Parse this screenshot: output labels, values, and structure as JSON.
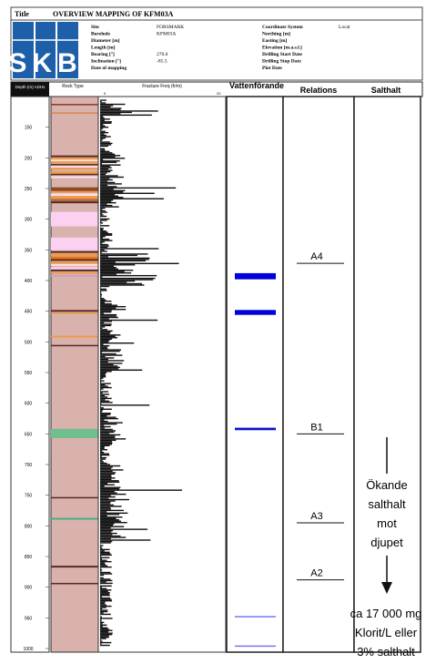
{
  "title_bar": {
    "label": "Title",
    "value": "OVERVIEW MAPPING OF KFM03A"
  },
  "logo": {
    "text": "SKB",
    "color": "#1d5fa8"
  },
  "header_fields": [
    {
      "label": "Site",
      "value": "FORSMARK"
    },
    {
      "label": "Borehole",
      "value": "KFM03A"
    },
    {
      "label": "Diameter [m]",
      "value": ""
    },
    {
      "label": "Length [m]",
      "value": ""
    },
    {
      "label": "Bearing [°]",
      "value": "270.0"
    },
    {
      "label": "Inclination [°]",
      "value": "-85.5"
    },
    {
      "label": "Date of mapping",
      "value": ""
    }
  ],
  "header_fields_right": [
    {
      "label": "Coordinate System",
      "value": "Local"
    },
    {
      "label": "Northing [m]",
      "value": ""
    },
    {
      "label": "Easting [m]",
      "value": ""
    },
    {
      "label": "Elevation [m.a.s.l.]",
      "value": ""
    },
    {
      "label": "Drilling Start Date",
      "value": ""
    },
    {
      "label": "Drilling Stop Date",
      "value": ""
    },
    {
      "label": "Plot Date",
      "value": ""
    }
  ],
  "columns": {
    "depth": "Depth (m) ADHs",
    "rock_type": "Rock Type",
    "fracture": "Fracture Freq (fr/m)",
    "fracture_scale_min": "0",
    "fracture_scale_max": "20",
    "water": "Vattenförande zone",
    "relations": "Relations",
    "salinity": "Salthalt"
  },
  "depth_ticks": [
    "150",
    "200",
    "250",
    "300",
    "350",
    "400",
    "450",
    "500",
    "550",
    "600",
    "650",
    "700",
    "750",
    "800",
    "850",
    "900",
    "950",
    "1000"
  ],
  "relation_markers": [
    {
      "label": "A4",
      "depth": 372
    },
    {
      "label": "B1",
      "depth": 650
    },
    {
      "label": "A3",
      "depth": 795
    },
    {
      "label": "A2",
      "depth": 888
    }
  ],
  "water_zones": [
    {
      "depth": 388,
      "thickness": 10,
      "color": "#0000dd"
    },
    {
      "depth": 448,
      "thickness": 8,
      "color": "#0000dd"
    },
    {
      "depth": 640,
      "thickness": 4,
      "color": "#1111cc"
    },
    {
      "depth": 947,
      "thickness": 2,
      "color": "#7777ee"
    },
    {
      "depth": 995,
      "thickness": 2,
      "color": "#7777ee"
    }
  ],
  "salinity_note": {
    "lines": [
      "Ökande",
      "salthalt",
      "mot",
      "djupet"
    ],
    "bottom_lines": [
      "ca 17 000 mg",
      "Klorit/L eller",
      "3% salthalt"
    ]
  }
}
